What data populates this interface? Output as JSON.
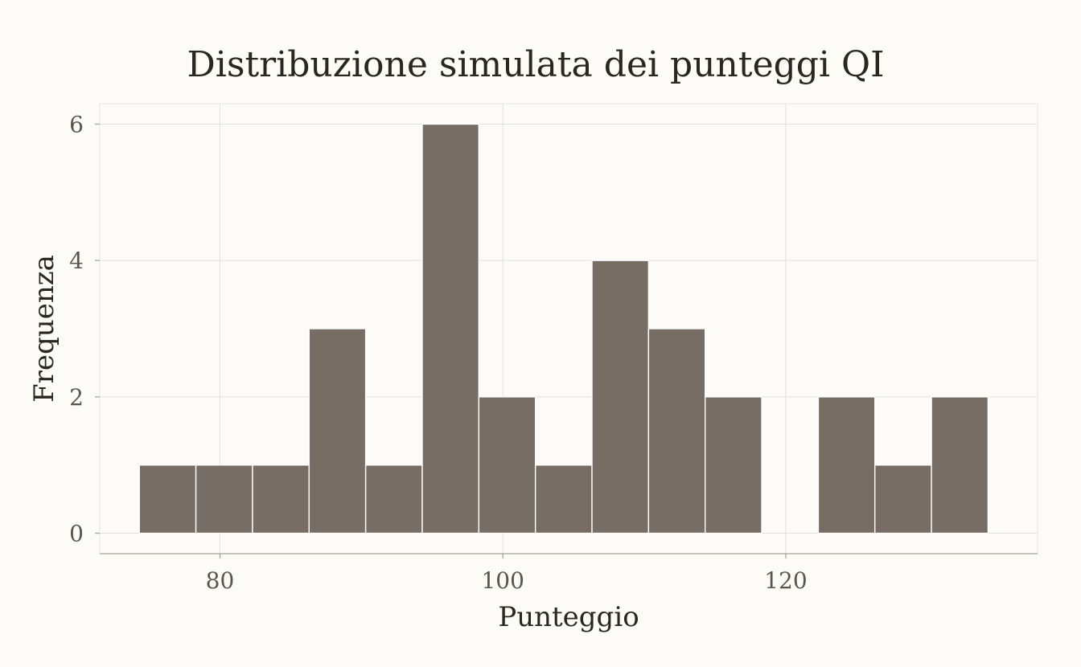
{
  "chart_data": {
    "type": "bar",
    "title": "Distribuzione simulata dei punteggi QI",
    "xlabel": "Punteggio",
    "ylabel": "Frequenza",
    "bin_width": 4,
    "bins": [
      {
        "x0": 74.3,
        "x1": 78.3,
        "count": 1
      },
      {
        "x0": 78.3,
        "x1": 82.3,
        "count": 1
      },
      {
        "x0": 82.3,
        "x1": 86.3,
        "count": 1
      },
      {
        "x0": 86.3,
        "x1": 90.3,
        "count": 3
      },
      {
        "x0": 90.3,
        "x1": 94.3,
        "count": 1
      },
      {
        "x0": 94.3,
        "x1": 98.3,
        "count": 6
      },
      {
        "x0": 98.3,
        "x1": 102.3,
        "count": 2
      },
      {
        "x0": 102.3,
        "x1": 106.3,
        "count": 1
      },
      {
        "x0": 106.3,
        "x1": 110.3,
        "count": 4
      },
      {
        "x0": 110.3,
        "x1": 114.3,
        "count": 3
      },
      {
        "x0": 114.3,
        "x1": 118.3,
        "count": 2
      },
      {
        "x0": 118.3,
        "x1": 122.3,
        "count": 0
      },
      {
        "x0": 122.3,
        "x1": 126.3,
        "count": 2
      },
      {
        "x0": 126.3,
        "x1": 130.3,
        "count": 1
      },
      {
        "x0": 130.3,
        "x1": 134.3,
        "count": 2
      }
    ],
    "x_ticks": [
      80,
      100,
      120
    ],
    "y_ticks": [
      0,
      2,
      4,
      6
    ],
    "xlim": [
      71.5,
      137.8
    ],
    "ylim": [
      -0.3,
      6.3
    ],
    "grid": true,
    "legend": "none",
    "colors": {
      "bar_fill": "#6b6158",
      "bar_edge": "#ffffff",
      "background": "#fcfbf8"
    }
  }
}
